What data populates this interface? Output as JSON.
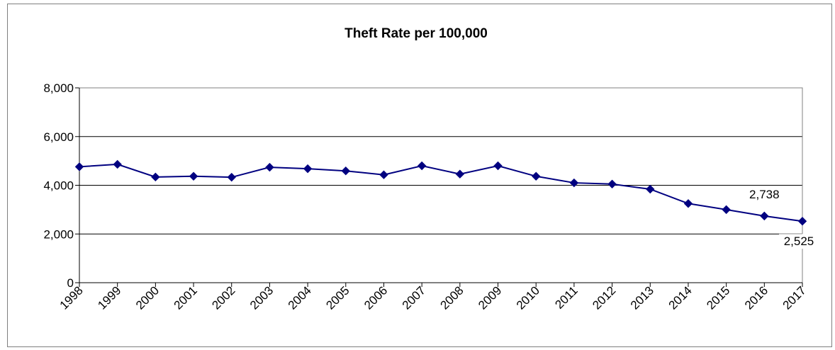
{
  "chart_data": {
    "type": "line",
    "title": "Theft Rate per 100,000",
    "xlabel": "",
    "ylabel": "",
    "ylim": [
      0,
      8000
    ],
    "yticks": [
      "0",
      "2,000",
      "4,000",
      "6,000",
      "8,000"
    ],
    "ytick_values": [
      0,
      2000,
      4000,
      6000,
      8000
    ],
    "grid": "horizontal",
    "legend": "none",
    "categories": [
      "1998",
      "1999",
      "2000",
      "2001",
      "2002",
      "2003",
      "2004",
      "2005",
      "2006",
      "2007",
      "2008",
      "2009",
      "2010",
      "2011",
      "2012",
      "2013",
      "2014",
      "2015",
      "2016",
      "2017"
    ],
    "series": [
      {
        "values": [
          4760,
          4860,
          4340,
          4370,
          4330,
          4740,
          4680,
          4590,
          4430,
          4800,
          4460,
          4800,
          4370,
          4100,
          4050,
          3840,
          3250,
          3000,
          2738,
          2525
        ],
        "color": "#000080"
      }
    ],
    "data_labels": [
      {
        "index": 18,
        "text": "2,738"
      },
      {
        "index": 19,
        "text": "2,525"
      }
    ]
  }
}
